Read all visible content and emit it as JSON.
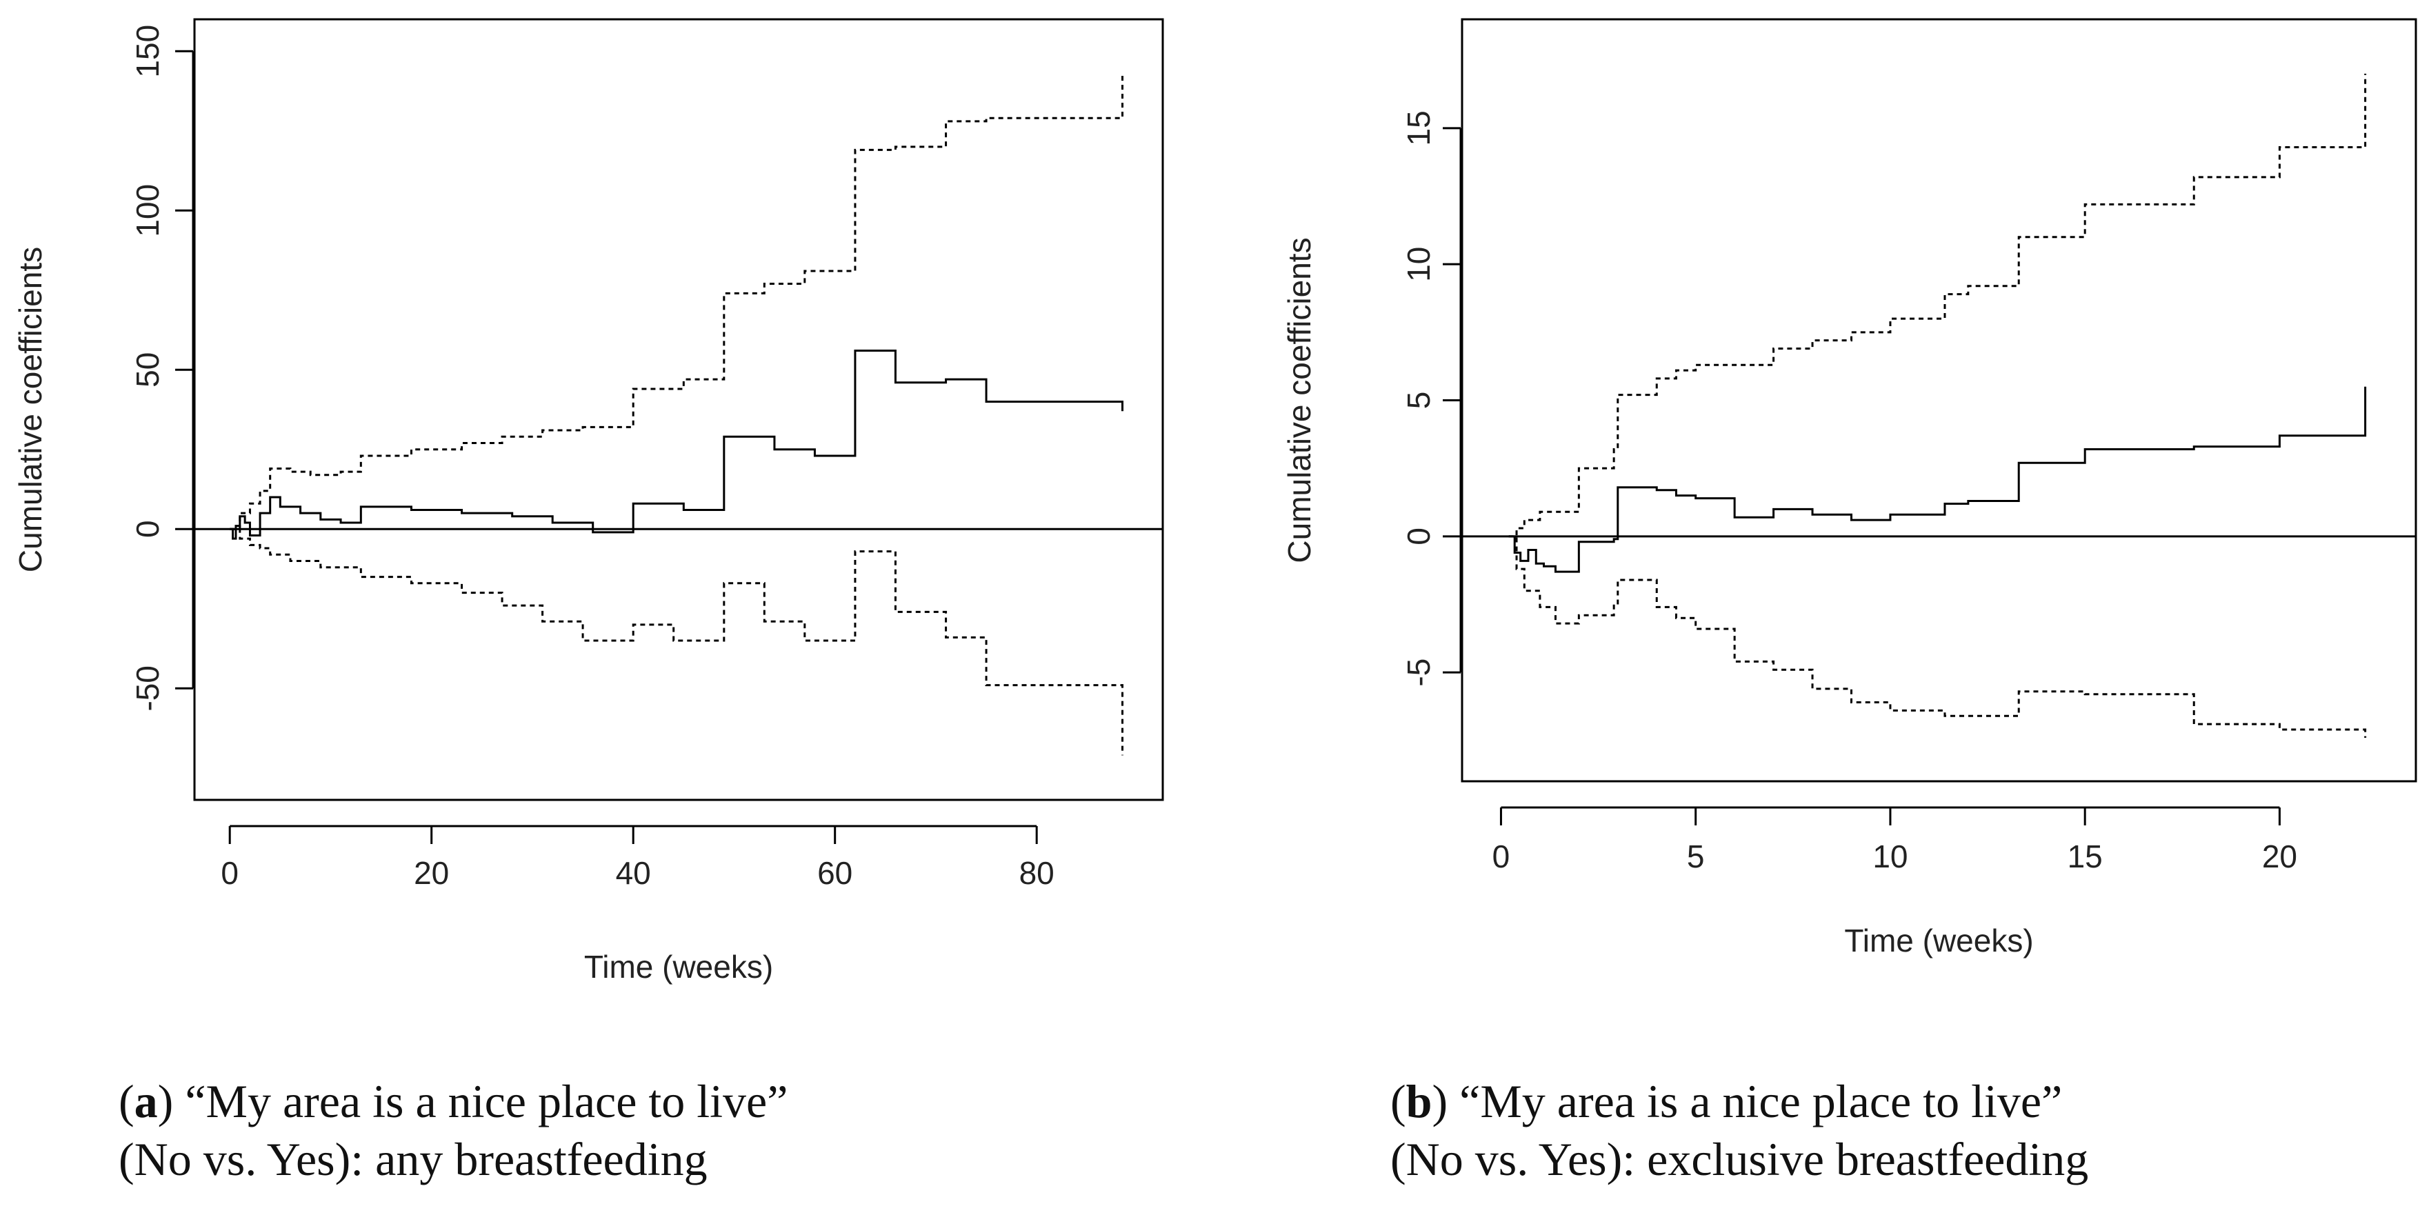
{
  "chart_data": [
    {
      "type": "line",
      "panel_label": "a",
      "caption_line1": "“My area is a nice place to live”",
      "caption_line2": "(No vs. Yes): any breastfeeding",
      "xlabel": "Time (weeks)",
      "ylabel": "Cumulative coefficients",
      "xlim": [
        -3.5,
        92.5
      ],
      "ylim": [
        -85,
        160
      ],
      "xticks": [
        "0",
        "20",
        "40",
        "60",
        "80"
      ],
      "xtick_values": [
        0,
        20,
        40,
        60,
        80
      ],
      "yticks": [
        "-50",
        "0",
        "50",
        "100",
        "150"
      ],
      "ytick_values": [
        -50,
        0,
        50,
        100,
        150
      ],
      "hline": 0,
      "series": [
        {
          "name": "Cumulative coefficient estimate",
          "style": "solid",
          "x": [
            0,
            0.3,
            0.6,
            1,
            1.5,
            2,
            3,
            4,
            5,
            7,
            9,
            11,
            13,
            18,
            23,
            28,
            32,
            36,
            40,
            45,
            49,
            54,
            58,
            62,
            66,
            71,
            75,
            88.5
          ],
          "y": [
            0,
            -3,
            1,
            4,
            2,
            -2,
            5,
            10,
            7,
            5,
            3,
            2,
            7,
            6,
            5,
            4,
            2,
            -1,
            8,
            6,
            29,
            25,
            23,
            56,
            46,
            47,
            40,
            37
          ]
        },
        {
          "name": "Upper confidence band",
          "style": "dotted",
          "x": [
            0,
            1,
            2,
            3,
            4,
            6,
            8,
            11,
            13,
            18,
            23,
            27,
            31,
            35,
            40,
            45,
            49,
            53,
            57,
            62,
            66,
            71,
            75,
            88.5
          ],
          "y": [
            0,
            5,
            8,
            12,
            19,
            18,
            17,
            18,
            23,
            25,
            27,
            29,
            31,
            32,
            44,
            47,
            74,
            77,
            81,
            119,
            120,
            128,
            129,
            143
          ]
        },
        {
          "name": "Lower confidence band",
          "style": "dotted",
          "x": [
            0,
            1,
            2,
            3,
            4,
            6,
            9,
            13,
            18,
            23,
            27,
            31,
            35,
            40,
            44,
            49,
            53,
            57,
            62,
            66,
            71,
            75,
            88.5
          ],
          "y": [
            0,
            -3,
            -5,
            -6,
            -8,
            -10,
            -12,
            -15,
            -17,
            -20,
            -24,
            -29,
            -35,
            -30,
            -35,
            -17,
            -29,
            -35,
            -7,
            -26,
            -34,
            -49,
            -71
          ]
        }
      ]
    },
    {
      "type": "line",
      "panel_label": "b",
      "caption_line1": "“My area is a nice place to live”",
      "caption_line2": "(No vs. Yes): exclusive breastfeeding",
      "xlabel": "Time (weeks)",
      "ylabel": "Cumulative coefficients",
      "xlim": [
        -1.0,
        23.5
      ],
      "ylim": [
        -9,
        19
      ],
      "xticks": [
        "0",
        "5",
        "10",
        "15",
        "20"
      ],
      "xtick_values": [
        0,
        5,
        10,
        15,
        20
      ],
      "yticks": [
        "-5",
        "0",
        "5",
        "10",
        "15"
      ],
      "ytick_values": [
        -5,
        0,
        5,
        10,
        15
      ],
      "hline": 0,
      "series": [
        {
          "name": "Cumulative coefficient estimate",
          "style": "solid",
          "x": [
            0.2,
            0.35,
            0.5,
            0.7,
            0.9,
            1.1,
            1.4,
            2.0,
            2.9,
            3.0,
            4.0,
            4.5,
            5.0,
            6.0,
            7.0,
            8.0,
            9.0,
            10.0,
            11.4,
            12.0,
            13.3,
            15.0,
            17.8,
            20.0,
            22.2
          ],
          "y": [
            0,
            -0.6,
            -0.9,
            -0.5,
            -1.0,
            -1.1,
            -1.3,
            -0.2,
            -0.1,
            1.8,
            1.7,
            1.5,
            1.4,
            0.7,
            1.0,
            0.8,
            0.6,
            0.8,
            1.2,
            1.3,
            2.7,
            3.2,
            3.3,
            3.7,
            5.5
          ]
        },
        {
          "name": "Upper confidence band",
          "style": "dotted",
          "x": [
            0.2,
            0.4,
            0.6,
            1.0,
            2.0,
            2.9,
            3.0,
            4.0,
            4.5,
            5.0,
            6.0,
            7.0,
            8.0,
            9.0,
            10.0,
            11.4,
            12.0,
            13.3,
            15.0,
            17.8,
            20.0,
            22.2
          ],
          "y": [
            0,
            0.3,
            0.6,
            0.9,
            2.5,
            3.2,
            5.2,
            5.8,
            6.1,
            6.3,
            6.3,
            6.9,
            7.2,
            7.5,
            8.0,
            8.9,
            9.2,
            11.0,
            12.2,
            13.2,
            14.3,
            17.0
          ]
        },
        {
          "name": "Lower confidence band",
          "style": "dotted",
          "x": [
            0.2,
            0.4,
            0.6,
            1.0,
            1.4,
            2.0,
            2.9,
            3.0,
            4.0,
            4.5,
            5.0,
            6.0,
            7.0,
            8.0,
            9.0,
            10.0,
            11.4,
            13.3,
            15.0,
            17.8,
            20.0,
            22.2
          ],
          "y": [
            0,
            -1.2,
            -2.0,
            -2.6,
            -3.2,
            -2.9,
            -2.5,
            -1.6,
            -2.6,
            -3.0,
            -3.4,
            -4.6,
            -4.9,
            -5.6,
            -6.1,
            -6.4,
            -6.6,
            -5.7,
            -5.8,
            -6.9,
            -7.1,
            -7.4
          ]
        }
      ]
    }
  ]
}
